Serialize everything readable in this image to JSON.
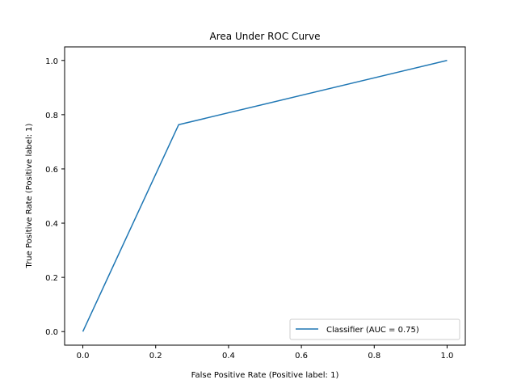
{
  "chart_data": {
    "type": "line",
    "title": "Area Under ROC Curve",
    "xlabel": "False Positive Rate (Positive label: 1)",
    "ylabel": "True Positive Rate (Positive label: 1)",
    "xlim": [
      -0.05,
      1.05
    ],
    "ylim": [
      -0.05,
      1.05
    ],
    "x_ticks": [
      0.0,
      0.2,
      0.4,
      0.6,
      0.8,
      1.0
    ],
    "y_ticks": [
      0.0,
      0.2,
      0.4,
      0.6,
      0.8,
      1.0
    ],
    "x_tick_labels": [
      "0.0",
      "0.2",
      "0.4",
      "0.6",
      "0.8",
      "1.0"
    ],
    "y_tick_labels": [
      "0.0",
      "0.2",
      "0.4",
      "0.6",
      "0.8",
      "1.0"
    ],
    "grid": false,
    "legend_position": "lower-right",
    "series": [
      {
        "name": "Classifier (AUC = 0.75)",
        "color": "#1f77b4",
        "x": [
          0.0,
          0.263,
          1.0
        ],
        "y": [
          0.0,
          0.763,
          1.0
        ]
      }
    ]
  }
}
